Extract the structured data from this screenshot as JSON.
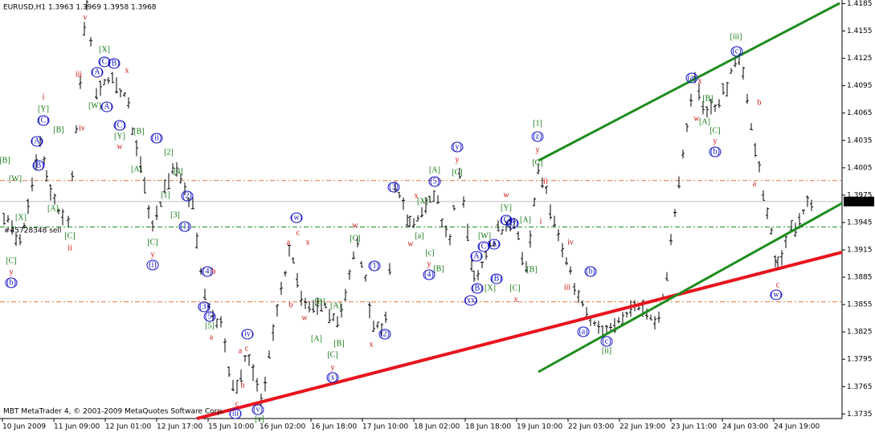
{
  "chart_data": {
    "type": "ohlc",
    "title": "EURUSD,H1  1.3963 1.3969 1.3958 1.3968",
    "footer": "MBT MetaTrader 4, © 2001-2009 MetaQuotes Software Corp.",
    "order_label": "#45728348 sell",
    "price_tag": {
      "value": 1.3968,
      "label": "1.3968"
    },
    "ylim": [
      1.373,
      1.4189
    ],
    "yticks": [
      {
        "value": 1.4185,
        "label": "1.4185"
      },
      {
        "value": 1.4155,
        "label": "1.4155"
      },
      {
        "value": 1.4125,
        "label": "1.4125"
      },
      {
        "value": 1.4095,
        "label": "1.4095"
      },
      {
        "value": 1.4065,
        "label": "1.4065"
      },
      {
        "value": 1.4035,
        "label": "1.4035"
      },
      {
        "value": 1.4005,
        "label": "1.4005"
      },
      {
        "value": 1.3975,
        "label": "1.3975"
      },
      {
        "value": 1.3945,
        "label": "1.3945"
      },
      {
        "value": 1.3915,
        "label": "1.3915"
      },
      {
        "value": 1.3885,
        "label": "1.3885"
      },
      {
        "value": 1.3855,
        "label": "1.3855"
      },
      {
        "value": 1.3825,
        "label": "1.3825"
      },
      {
        "value": 1.3795,
        "label": "1.3795"
      },
      {
        "value": 1.3765,
        "label": "1.3765"
      },
      {
        "value": 1.3735,
        "label": "1.3735"
      }
    ],
    "xticks": [
      "10 Jun 2009",
      "11 Jun 09:00",
      "12 Jun 01:00",
      "12 Jun 17:00",
      "15 Jun 10:00",
      "16 Jun 02:00",
      "16 Jun 18:00",
      "17 Jun 10:00",
      "18 Jun 02:00",
      "18 Jun 18:00",
      "19 Jun 10:00",
      "22 Jun 03:00",
      "22 Jun 19:00",
      "23 Jun 11:00",
      "24 Jun 03:00",
      "24 Jun 19:00"
    ],
    "levels": [
      1.3991,
      1.394,
      1.3858
    ],
    "values": [
      1.3955,
      1.392,
      1.404,
      1.399,
      1.394,
      1.419,
      1.408,
      1.411,
      1.407,
      1.3935,
      1.401,
      1.396,
      1.386,
      1.383,
      1.376,
      1.38,
      1.3745,
      1.392,
      1.385,
      1.386,
      1.383,
      1.393,
      1.3825,
      1.3835,
      1.399,
      1.394,
      1.398,
      1.392,
      1.4005,
      1.388,
      1.3935,
      1.395,
      1.389,
      1.401,
      1.394,
      1.384,
      1.382,
      1.386,
      1.3835,
      1.392,
      1.411,
      1.406,
      1.4085,
      1.413,
      1.4,
      1.3895,
      1.3935,
      1.397
    ],
    "wave_labels": [
      "v",
      "[X]",
      "iii",
      "(A)",
      "(C)",
      "(B)",
      "x",
      "i",
      "[Y]",
      "[B]",
      "(C)",
      "iv",
      "[W]",
      "(A)",
      "(C)",
      "[Y]",
      "w",
      "(A)",
      "(B)",
      "[B]",
      "[W]",
      "[X]",
      "[A]",
      "[C]",
      "ii",
      "[C]",
      "y",
      "(b)",
      "(ii)",
      "[B]",
      "[A]",
      "[2]",
      "[4]",
      "[1]",
      "[3]",
      "(2)",
      "(1)",
      "[C]",
      "y",
      "(i)",
      "(4)",
      "b",
      "(3)",
      "(5)",
      "[5]",
      "a",
      "(iv)",
      "c",
      "a",
      "b",
      "c",
      "(iii)",
      "(v)",
      "[v]",
      "(w)",
      "a",
      "c",
      "x",
      "b",
      "w",
      "[B]",
      "[A]",
      "[A]",
      "[C]",
      "[B]",
      "y",
      "(x)",
      "w",
      "[C]",
      "(1)",
      "x",
      "(2)",
      "(3)",
      "x",
      "[X]",
      "(5)",
      "[A]",
      "(y)",
      "y",
      "[C]",
      "w",
      "[a]",
      "[c]",
      "y",
      "[B]",
      "(4)",
      "w",
      "[Y]",
      "(C)",
      "[W]",
      "(B)",
      "[A]",
      "(A)",
      "(C)",
      "(A)",
      "(B)",
      "[X]",
      "(B)",
      "[C]",
      "[B]",
      "x",
      "(xx)",
      "[1]",
      "(z)",
      "y",
      "[C]",
      "ii",
      "i",
      "iv",
      "(b)",
      "iii",
      "(a)",
      "(c)",
      "[ii]",
      "[iii]",
      "(c)",
      "(a)",
      "x",
      "[B]",
      "w",
      "[A]",
      "[C]",
      "y",
      "(b)",
      "b",
      "a",
      "c",
      "(w)"
    ]
  }
}
